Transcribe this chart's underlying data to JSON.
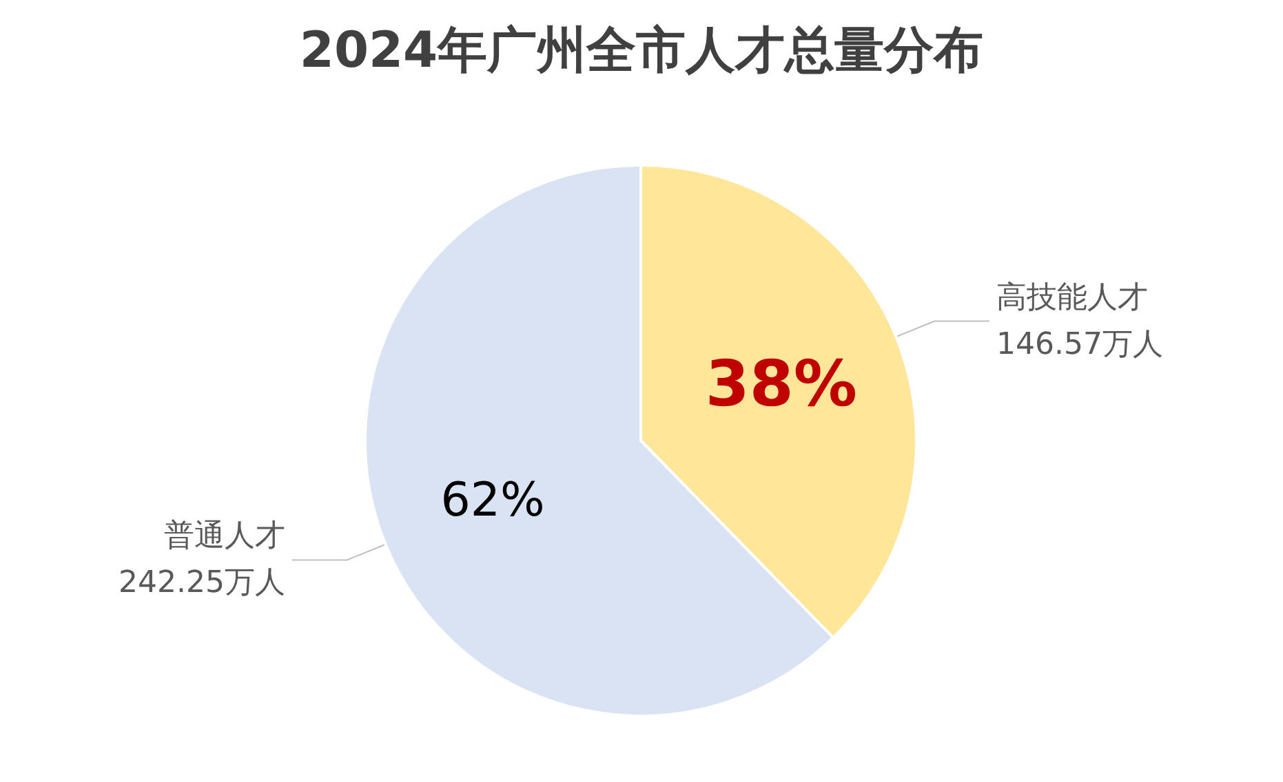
{
  "chart_data": {
    "type": "pie",
    "title": "2024年广州全市人才总量分布",
    "categories": [
      "高技能人才",
      "普通人才"
    ],
    "values": [
      146.57,
      242.25
    ],
    "colors": [
      "#ffe699",
      "#dae3f3"
    ],
    "value_labels": [
      "146.57万人",
      "242.25万人"
    ],
    "annotations": [
      "38%",
      "62%"
    ],
    "legend": false
  }
}
